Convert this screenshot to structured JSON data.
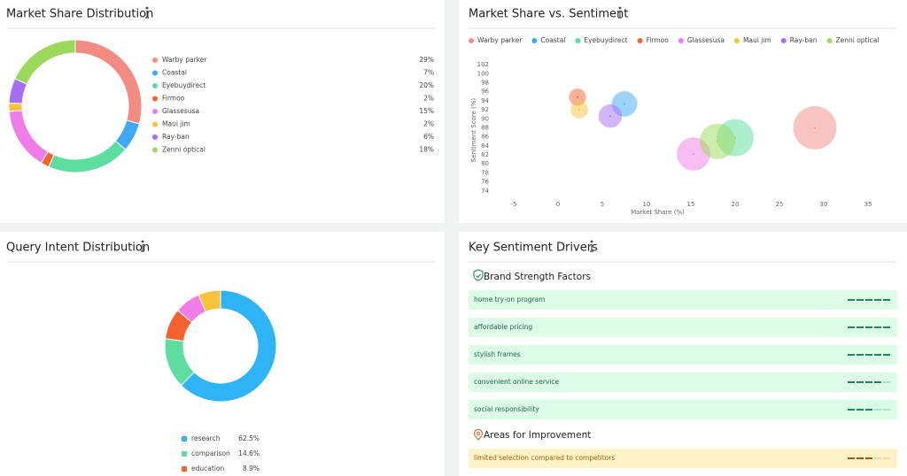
{
  "chart_data": [
    {
      "type": "donut",
      "title": "Market Share Distribution",
      "categories": [
        "Warby parker",
        "Coastal",
        "Eyebuydirect",
        "Firmoo",
        "Glassesusa",
        "Maui jim",
        "Ray-ban",
        "Zenni optical"
      ],
      "values": [
        29,
        7,
        20,
        2,
        15,
        2,
        6,
        18
      ],
      "value_labels": [
        "29%",
        "7%",
        "20%",
        "2%",
        "15%",
        "2%",
        "6%",
        "18%"
      ],
      "colors": [
        "#f28b82",
        "#3fa9f5",
        "#5ddea0",
        "#f4622e",
        "#f07de8",
        "#f9c23c",
        "#a56ef5",
        "#9ad95a"
      ]
    },
    {
      "type": "bubble",
      "title": "Market Share vs. Sentiment",
      "x_label": "Market Share (%)",
      "y_label": "Sentiment Score (%)",
      "series": [
        {
          "name": "Warby parker",
          "color": "#f28b82",
          "x": [
            29
          ],
          "values": [
            88
          ]
        },
        {
          "name": "Coastal",
          "color": "#3fa9f5",
          "x": [
            7.5
          ],
          "values": [
            93.3
          ]
        },
        {
          "name": "Eyebuydirect",
          "color": "#5ddea0",
          "x": [
            20
          ],
          "values": [
            85.8
          ]
        },
        {
          "name": "Firmoo",
          "color": "#f4622e",
          "x": [
            2.2
          ],
          "values": [
            94.8
          ]
        },
        {
          "name": "Glassesusa",
          "color": "#f07de8",
          "x": [
            15.3
          ],
          "values": [
            82.2
          ]
        },
        {
          "name": "Maui jim",
          "color": "#f9c23c",
          "x": [
            2.4
          ],
          "values": [
            92
          ]
        },
        {
          "name": "Ray-ban",
          "color": "#a56ef5",
          "x": [
            5.9
          ],
          "values": [
            90.6
          ]
        },
        {
          "name": "Zenni optical",
          "color": "#9ad95a",
          "x": [
            18
          ],
          "values": [
            85
          ]
        }
      ],
      "xlim": [
        -7,
        38.5
      ],
      "xticks": [
        -5,
        0,
        5,
        10,
        15,
        20,
        25,
        30,
        35
      ],
      "ylim": [
        72,
        103
      ],
      "yticks": [
        74,
        76,
        78,
        80,
        82,
        84,
        86,
        88,
        90,
        92,
        94,
        96,
        98,
        100,
        102
      ],
      "grid": false
    },
    {
      "type": "donut",
      "title": "Query Intent Distribution",
      "categories": [
        "research",
        "comparison",
        "education",
        null,
        null
      ],
      "values": [
        62.5,
        14.6,
        8.9,
        7.5,
        6.5
      ],
      "value_labels": [
        "62.5%",
        "14.6%",
        "8.9%",
        null,
        null
      ],
      "colors": [
        "#2fb4f7",
        "#5ddea0",
        "#f4622e",
        "#f07de8",
        "#f9c23c"
      ]
    }
  ],
  "sentiment_drivers": {
    "title": "Key Sentiment Drivers",
    "scale": 5,
    "sections": [
      {
        "title": "Brand Strength Factors",
        "items": [
          {
            "label": "home try-on program",
            "score": 5
          },
          {
            "label": "affordable pricing",
            "score": 5
          },
          {
            "label": "stylish frames",
            "score": 5
          },
          {
            "label": "convenient online service",
            "score": 4
          },
          {
            "label": "social responsibility",
            "score": 3
          }
        ]
      },
      {
        "title": "Areas for Improvement",
        "items": [
          {
            "label": "limited selection compared to competitors",
            "score": 3
          }
        ]
      }
    ]
  }
}
